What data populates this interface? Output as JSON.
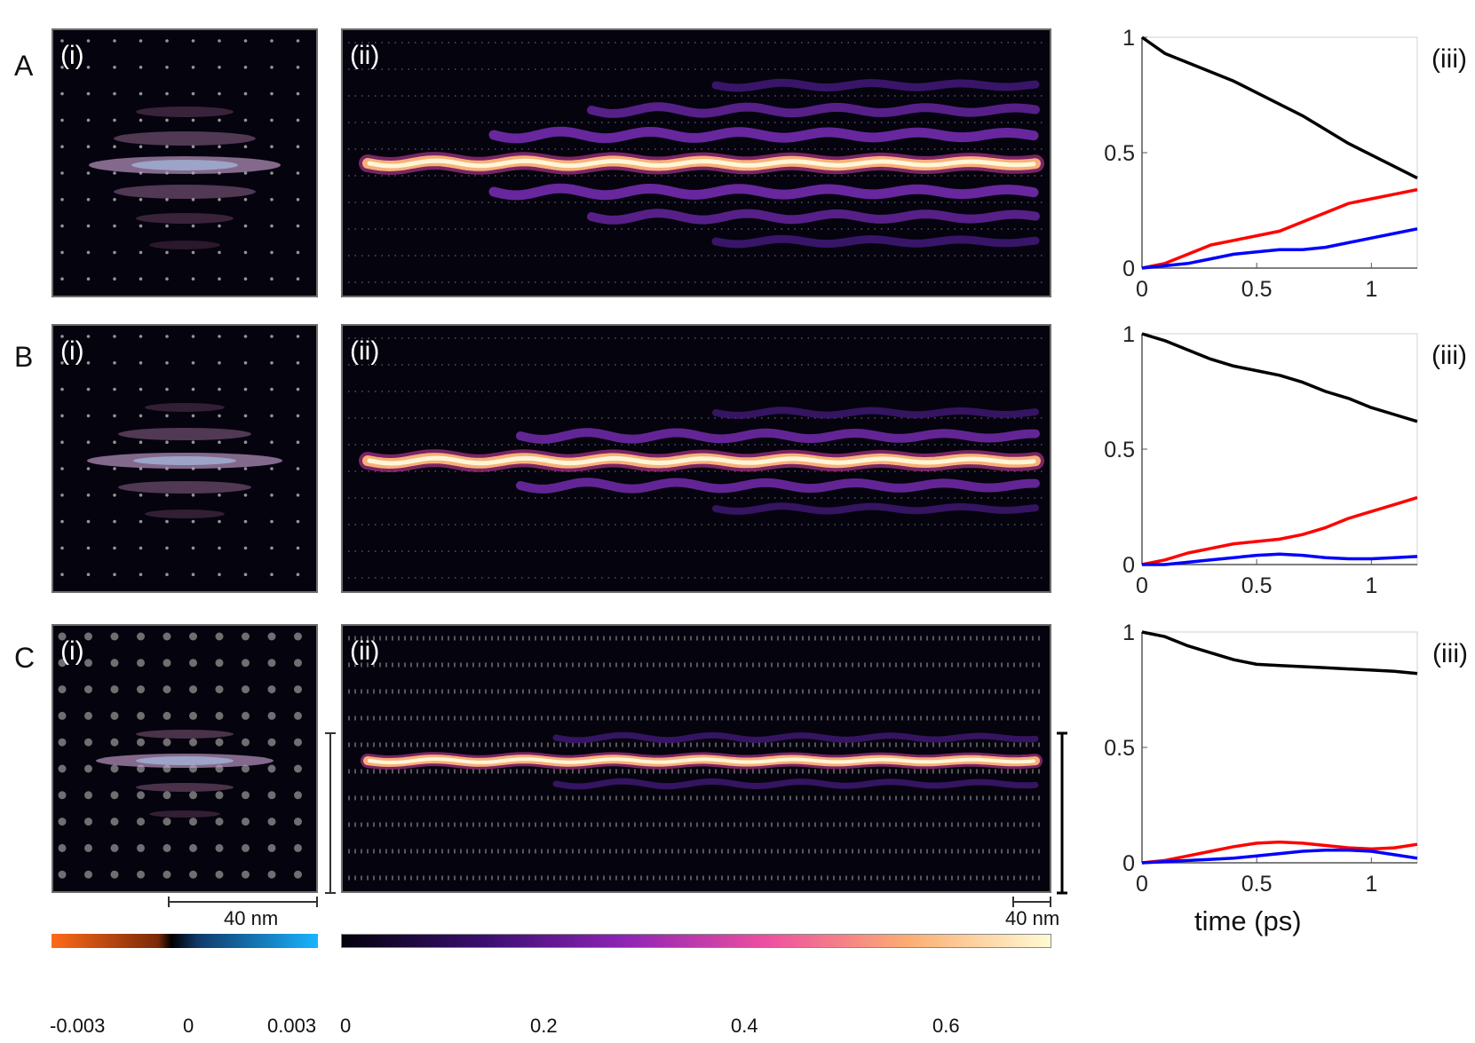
{
  "rows": [
    {
      "label": "A"
    },
    {
      "label": "B"
    },
    {
      "label": "C"
    }
  ],
  "panel_labels": {
    "i": "(i)",
    "ii": "(ii)",
    "iii": "(iii)"
  },
  "scalebars": {
    "left": "40 nm",
    "right": "40 nm"
  },
  "colorbars": {
    "diverging": {
      "ticks": [
        "-0.003",
        "0",
        "0.003"
      ],
      "colors": [
        "#ff6a1a",
        "#000000",
        "#1ab4ff"
      ]
    },
    "sequential": {
      "ticks": [
        "0",
        "0.2",
        "0.4",
        "0.6"
      ],
      "colors": [
        "#03020c",
        "#3a0f70",
        "#8f24b6",
        "#ee4fa0",
        "#fcae72",
        "#fefad4"
      ]
    }
  },
  "chart_data": [
    {
      "type": "line",
      "panel": "A(iii)",
      "xlabel": "",
      "ylabel": "",
      "xlim": [
        0,
        1.2
      ],
      "ylim": [
        0,
        1
      ],
      "xticks": [
        "0",
        "0.5",
        "1"
      ],
      "yticks": [
        "0",
        "0.5",
        "1"
      ],
      "x": [
        0,
        0.1,
        0.2,
        0.3,
        0.4,
        0.5,
        0.6,
        0.7,
        0.8,
        0.9,
        1.0,
        1.1,
        1.2
      ],
      "series": [
        {
          "color": "#000000",
          "values": [
            1.0,
            0.93,
            0.89,
            0.85,
            0.81,
            0.76,
            0.71,
            0.66,
            0.6,
            0.54,
            0.49,
            0.44,
            0.39
          ]
        },
        {
          "color": "#ff0000",
          "values": [
            0.0,
            0.02,
            0.06,
            0.1,
            0.12,
            0.14,
            0.16,
            0.2,
            0.24,
            0.28,
            0.3,
            0.32,
            0.34
          ]
        },
        {
          "color": "#0000ff",
          "values": [
            0.0,
            0.01,
            0.02,
            0.04,
            0.06,
            0.07,
            0.08,
            0.08,
            0.09,
            0.11,
            0.13,
            0.15,
            0.17
          ]
        }
      ]
    },
    {
      "type": "line",
      "panel": "B(iii)",
      "xlabel": "",
      "ylabel": "",
      "xlim": [
        0,
        1.2
      ],
      "ylim": [
        0,
        1
      ],
      "xticks": [
        "0",
        "0.5",
        "1"
      ],
      "yticks": [
        "0",
        "0.5",
        "1"
      ],
      "x": [
        0,
        0.1,
        0.2,
        0.3,
        0.4,
        0.5,
        0.6,
        0.7,
        0.8,
        0.9,
        1.0,
        1.1,
        1.2
      ],
      "series": [
        {
          "color": "#000000",
          "values": [
            1.0,
            0.97,
            0.93,
            0.89,
            0.86,
            0.84,
            0.82,
            0.79,
            0.75,
            0.72,
            0.68,
            0.65,
            0.62
          ]
        },
        {
          "color": "#ff0000",
          "values": [
            0.0,
            0.02,
            0.05,
            0.07,
            0.09,
            0.1,
            0.11,
            0.13,
            0.16,
            0.2,
            0.23,
            0.26,
            0.29
          ]
        },
        {
          "color": "#0000ff",
          "values": [
            0.0,
            0.0,
            0.01,
            0.02,
            0.03,
            0.04,
            0.045,
            0.04,
            0.03,
            0.025,
            0.025,
            0.03,
            0.035
          ]
        }
      ]
    },
    {
      "type": "line",
      "panel": "C(iii)",
      "xlabel": "time (ps)",
      "ylabel": "",
      "xlim": [
        0,
        1.2
      ],
      "ylim": [
        0,
        1
      ],
      "xticks": [
        "0",
        "0.5",
        "1"
      ],
      "yticks": [
        "0",
        "0.5",
        "1"
      ],
      "x": [
        0,
        0.1,
        0.2,
        0.3,
        0.4,
        0.5,
        0.6,
        0.7,
        0.8,
        0.9,
        1.0,
        1.1,
        1.2
      ],
      "series": [
        {
          "color": "#000000",
          "values": [
            1.0,
            0.98,
            0.94,
            0.91,
            0.88,
            0.86,
            0.855,
            0.85,
            0.845,
            0.84,
            0.835,
            0.83,
            0.82
          ]
        },
        {
          "color": "#ff0000",
          "values": [
            0.0,
            0.01,
            0.03,
            0.05,
            0.07,
            0.085,
            0.09,
            0.085,
            0.075,
            0.065,
            0.06,
            0.065,
            0.08
          ]
        },
        {
          "color": "#0000ff",
          "values": [
            0.0,
            0.005,
            0.01,
            0.015,
            0.02,
            0.03,
            0.04,
            0.05,
            0.055,
            0.055,
            0.05,
            0.035,
            0.02
          ]
        }
      ]
    }
  ]
}
